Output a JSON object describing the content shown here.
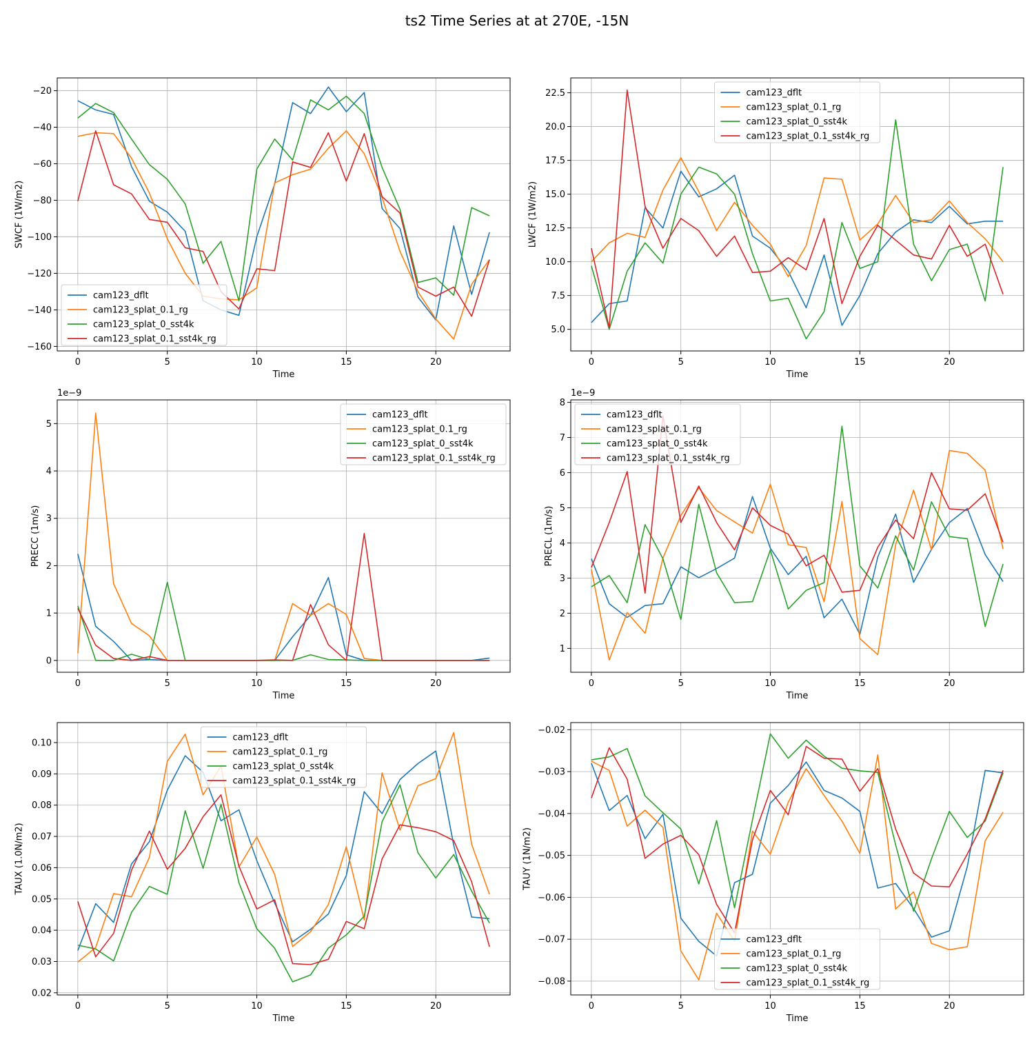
{
  "figure_title": "ts2 Time Series at at 270E, -15N",
  "colors": {
    "cam123_dflt": "#1f77b4",
    "cam123_splat_0.1_rg": "#ff7f0e",
    "cam123_splat_0_sst4k": "#2ca02c",
    "cam123_splat_0.1_sst4k_rg": "#d62728"
  },
  "chart_data": [
    {
      "type": "line",
      "ylabel": "SWCF (1W/m2)",
      "xlabel": "Time",
      "xlim": [
        -1.15,
        24.15
      ],
      "ylim": [
        -162.5,
        -13
      ],
      "xticks": [
        0,
        5,
        10,
        15,
        20
      ],
      "xtick_labels": [
        "0",
        "5",
        "10",
        "15",
        "20"
      ],
      "yticks": [
        -160,
        -140,
        -120,
        -100,
        -80,
        -60,
        -40,
        -20
      ],
      "ytick_labels": [
        "−160",
        "−140",
        "−120",
        "−100",
        "−80",
        "−60",
        "−40",
        "−20"
      ],
      "offset_text": "",
      "legend_loc": "lower-left",
      "grid": true,
      "x": [
        0,
        1,
        2,
        3,
        4,
        5,
        6,
        7,
        8,
        9,
        10,
        11,
        12,
        13,
        14,
        15,
        16,
        17,
        18,
        19,
        20,
        21,
        22,
        23
      ],
      "series": [
        {
          "name": "cam123_dflt",
          "values": [
            -25.5,
            -30.5,
            -33,
            -61.5,
            -80.5,
            -86.5,
            -97,
            -135,
            -140,
            -143,
            -100,
            -71,
            -26.5,
            -32.5,
            -18,
            -31.5,
            -21,
            -84.5,
            -95.5,
            -133,
            -145.5,
            -94,
            -131.5,
            -97.5
          ]
        },
        {
          "name": "cam123_splat_0.1_rg",
          "values": [
            -45,
            -43,
            -43.5,
            -57,
            -76,
            -101,
            -120,
            -132.5,
            -134,
            -134.5,
            -128,
            -70.5,
            -66,
            -63,
            -51.5,
            -42,
            -54.5,
            -78.5,
            -108,
            -130,
            -145,
            -156,
            -126,
            -112.5
          ]
        },
        {
          "name": "cam123_splat_0_sst4k",
          "values": [
            -35,
            -27,
            -32,
            -46.5,
            -60.5,
            -68.5,
            -82,
            -114.5,
            -102.5,
            -135,
            -63,
            -46.5,
            -58,
            -25,
            -30.5,
            -23,
            -32.5,
            -62,
            -85,
            -125,
            -122.5,
            -132,
            -84,
            -88.5
          ]
        },
        {
          "name": "cam123_splat_0.1_sst4k_rg",
          "values": [
            -80.5,
            -42,
            -71.5,
            -76.5,
            -90.5,
            -92,
            -106,
            -108,
            -130,
            -139.5,
            -117.5,
            -118.5,
            -59,
            -62,
            -43,
            -69.5,
            -43.5,
            -78,
            -87,
            -127.5,
            -132.5,
            -127.5,
            -143.5,
            -112.5
          ]
        }
      ]
    },
    {
      "type": "line",
      "ylabel": "LWCF (1W/m2)",
      "xlabel": "Time",
      "xlim": [
        -1.15,
        24.15
      ],
      "ylim": [
        3.4,
        23.6
      ],
      "xticks": [
        0,
        5,
        10,
        15,
        20
      ],
      "xtick_labels": [
        "0",
        "5",
        "10",
        "15",
        "20"
      ],
      "yticks": [
        5,
        7.5,
        10,
        12.5,
        15,
        17.5,
        20,
        22.5
      ],
      "ytick_labels": [
        "5.0",
        "7.5",
        "10.0",
        "12.5",
        "15.0",
        "17.5",
        "20.0",
        "22.5"
      ],
      "offset_text": "",
      "legend_loc": "top-center",
      "grid": true,
      "x": [
        0,
        1,
        2,
        3,
        4,
        5,
        6,
        7,
        8,
        9,
        10,
        11,
        12,
        13,
        14,
        15,
        16,
        17,
        18,
        19,
        20,
        21,
        22,
        23
      ],
      "series": [
        {
          "name": "cam123_dflt",
          "values": [
            5.5,
            6.9,
            7.1,
            14,
            12.5,
            16.7,
            14.8,
            15.4,
            16.4,
            11.9,
            11,
            9.3,
            6.6,
            10.5,
            5.3,
            7.5,
            10.6,
            12.2,
            13.1,
            12.9,
            14.1,
            12.8,
            13,
            13
          ]
        },
        {
          "name": "cam123_splat_0.1_rg",
          "values": [
            10,
            11.4,
            12.1,
            11.8,
            15.3,
            17.7,
            15.2,
            12.3,
            14.4,
            12.7,
            11.3,
            8.9,
            11.2,
            16.2,
            16.1,
            11.6,
            12.8,
            14.9,
            12.9,
            13.1,
            14.5,
            12.9,
            11.7,
            10
          ]
        },
        {
          "name": "cam123_splat_0_sst4k",
          "values": [
            9.7,
            5,
            9.3,
            11.4,
            9.9,
            15,
            17,
            16.5,
            15,
            10.6,
            7.1,
            7.3,
            4.3,
            6.3,
            12.9,
            9.5,
            10,
            20.5,
            11.3,
            8.6,
            10.9,
            11.3,
            7.1,
            17
          ]
        },
        {
          "name": "cam123_splat_0.1_sst4k_rg",
          "values": [
            11,
            5.1,
            22.7,
            14.1,
            11,
            13.2,
            12.3,
            10.4,
            11.9,
            9.2,
            9.3,
            10.3,
            9.4,
            13.2,
            6.9,
            10.4,
            12.7,
            11.6,
            10.5,
            10.2,
            12.7,
            10.4,
            11.3,
            7.6
          ]
        }
      ]
    },
    {
      "type": "line",
      "ylabel": "PRECC (1m/s)",
      "xlabel": "Time",
      "xlim": [
        -1.15,
        24.15
      ],
      "ylim": [
        -0.25,
        5.5
      ],
      "xticks": [
        0,
        5,
        10,
        15,
        20
      ],
      "xtick_labels": [
        "0",
        "5",
        "10",
        "15",
        "20"
      ],
      "yticks": [
        0,
        1,
        2,
        3,
        4,
        5
      ],
      "ytick_labels": [
        "0",
        "1",
        "2",
        "3",
        "4",
        "5"
      ],
      "offset_text": "1e−9",
      "legend_loc": "top-right",
      "grid": true,
      "x": [
        0,
        1,
        2,
        3,
        4,
        5,
        6,
        7,
        8,
        9,
        10,
        11,
        12,
        13,
        14,
        15,
        16,
        17,
        18,
        19,
        20,
        21,
        22,
        23
      ],
      "series": [
        {
          "name": "cam123_dflt",
          "values": [
            2.25,
            0.72,
            0.4,
            0,
            0.02,
            0,
            0,
            0,
            0,
            0,
            0,
            0,
            0.5,
            0.95,
            1.75,
            0.12,
            0,
            0,
            0,
            0,
            0,
            0,
            0,
            0.05
          ]
        },
        {
          "name": "cam123_splat_0.1_rg",
          "values": [
            0.15,
            5.22,
            1.62,
            0.78,
            0.52,
            0,
            0,
            0,
            0,
            0,
            0,
            0,
            1.2,
            0.95,
            1.2,
            0.97,
            0.04,
            0,
            0,
            0,
            0,
            0,
            0,
            0
          ]
        },
        {
          "name": "cam123_splat_0_sst4k",
          "values": [
            1.15,
            0,
            0,
            0.13,
            0.02,
            1.65,
            0,
            0,
            0,
            0,
            0,
            0,
            0,
            0.12,
            0.02,
            0.01,
            0,
            0,
            0,
            0,
            0,
            0,
            0,
            0
          ]
        },
        {
          "name": "cam123_splat_0.1_sst4k_rg",
          "values": [
            1.1,
            0.32,
            0.04,
            0,
            0.08,
            0,
            0,
            0,
            0,
            0,
            0,
            0.01,
            0,
            1.18,
            0.33,
            0,
            2.68,
            0,
            0,
            0,
            0,
            0,
            0,
            0
          ]
        }
      ]
    },
    {
      "type": "line",
      "ylabel": "PRECL (1m/s)",
      "xlabel": "Time",
      "xlim": [
        -1.15,
        24.15
      ],
      "ylim": [
        0.32,
        8.07
      ],
      "xticks": [
        0,
        5,
        10,
        15,
        20
      ],
      "xtick_labels": [
        "0",
        "5",
        "10",
        "15",
        "20"
      ],
      "yticks": [
        1,
        2,
        3,
        4,
        5,
        6,
        7,
        8
      ],
      "ytick_labels": [
        "1",
        "2",
        "3",
        "4",
        "5",
        "6",
        "7",
        "8"
      ],
      "offset_text": "1e−9",
      "legend_loc": "top-left",
      "grid": true,
      "x": [
        0,
        1,
        2,
        3,
        4,
        5,
        6,
        7,
        8,
        9,
        10,
        11,
        12,
        13,
        14,
        15,
        16,
        17,
        18,
        19,
        20,
        21,
        22,
        23
      ],
      "series": [
        {
          "name": "cam123_dflt",
          "values": [
            3.55,
            2.27,
            1.88,
            2.22,
            2.27,
            3.32,
            3.01,
            3.27,
            3.57,
            5.32,
            3.85,
            3.1,
            3.62,
            1.87,
            2.4,
            1.4,
            3.6,
            4.82,
            2.88,
            3.82,
            4.58,
            4.98,
            3.67,
            2.9
          ]
        },
        {
          "name": "cam123_splat_0.1_rg",
          "values": [
            3.25,
            0.67,
            2.02,
            1.43,
            3.57,
            4.78,
            5.57,
            4.92,
            4.6,
            4.28,
            5.67,
            3.95,
            3.87,
            2.33,
            5.18,
            1.28,
            0.82,
            3.95,
            5.5,
            3.8,
            6.63,
            6.55,
            6.07,
            3.83
          ]
        },
        {
          "name": "cam123_splat_0_sst4k",
          "values": [
            2.75,
            3.07,
            2.3,
            4.52,
            3.55,
            1.82,
            5.1,
            3.15,
            2.3,
            2.33,
            3.8,
            2.12,
            2.65,
            2.87,
            7.32,
            3.35,
            2.72,
            4.2,
            3.23,
            5.17,
            4.18,
            4.12,
            1.62,
            3.4
          ]
        },
        {
          "name": "cam123_splat_0.1_sst4k_rg",
          "values": [
            3.3,
            4.58,
            6.03,
            2.57,
            7.62,
            4.58,
            5.62,
            4.58,
            3.8,
            5,
            4.5,
            4.25,
            3.35,
            3.65,
            2.6,
            2.65,
            3.88,
            4.65,
            4.12,
            6,
            4.97,
            4.93,
            5.4,
            4.02
          ]
        }
      ]
    },
    {
      "type": "line",
      "ylabel": "TAUX (1.0N/m2)",
      "xlabel": "Time",
      "xlim": [
        -1.15,
        24.15
      ],
      "ylim": [
        0.0193,
        0.1064
      ],
      "xticks": [
        0,
        5,
        10,
        15,
        20
      ],
      "xtick_labels": [
        "0",
        "5",
        "10",
        "15",
        "20"
      ],
      "yticks": [
        0.02,
        0.03,
        0.04,
        0.05,
        0.06,
        0.07,
        0.08,
        0.09,
        0.1
      ],
      "ytick_labels": [
        "0.02",
        "0.03",
        "0.04",
        "0.05",
        "0.06",
        "0.07",
        "0.08",
        "0.09",
        "0.10"
      ],
      "offset_text": "",
      "legend_loc": "top-center",
      "grid": true,
      "x": [
        0,
        1,
        2,
        3,
        4,
        5,
        6,
        7,
        8,
        9,
        10,
        11,
        12,
        13,
        14,
        15,
        16,
        17,
        18,
        19,
        20,
        21,
        22,
        23
      ],
      "series": [
        {
          "name": "cam123_dflt",
          "values": [
            0.0335,
            0.0485,
            0.0425,
            0.0612,
            0.0683,
            0.0848,
            0.0958,
            0.0905,
            0.075,
            0.0785,
            0.0623,
            0.0487,
            0.0363,
            0.0403,
            0.0452,
            0.0575,
            0.0843,
            0.0773,
            0.0882,
            0.0933,
            0.0973,
            0.0672,
            0.0442,
            0.0437
          ]
        },
        {
          "name": "cam123_splat_0.1_rg",
          "values": [
            0.0298,
            0.0345,
            0.0517,
            0.0507,
            0.0633,
            0.094,
            0.1027,
            0.0833,
            0.0925,
            0.0602,
            0.0698,
            0.0578,
            0.0348,
            0.0395,
            0.0482,
            0.0667,
            0.0433,
            0.0903,
            0.072,
            0.0862,
            0.0885,
            0.1032,
            0.0675,
            0.0515
          ]
        },
        {
          "name": "cam123_splat_0_sst4k",
          "values": [
            0.0352,
            0.034,
            0.0302,
            0.0457,
            0.054,
            0.0515,
            0.0782,
            0.0598,
            0.0803,
            0.0552,
            0.0405,
            0.0342,
            0.0235,
            0.0257,
            0.0343,
            0.0385,
            0.0445,
            0.0747,
            0.0865,
            0.0648,
            0.0567,
            0.0642,
            0.0525,
            0.0423
          ]
        },
        {
          "name": "cam123_splat_0.1_sst4k_rg",
          "values": [
            0.0492,
            0.0315,
            0.039,
            0.0592,
            0.0717,
            0.0595,
            0.0662,
            0.0763,
            0.0833,
            0.0605,
            0.0468,
            0.0497,
            0.0293,
            0.029,
            0.0307,
            0.0428,
            0.0405,
            0.0628,
            0.0737,
            0.0728,
            0.0715,
            0.0687,
            0.0555,
            0.0347
          ]
        }
      ]
    },
    {
      "type": "line",
      "ylabel": "TAUY (1N/m2)",
      "xlabel": "Time",
      "xlim": [
        -1.15,
        24.15
      ],
      "ylim": [
        -0.0833,
        -0.0183
      ],
      "xticks": [
        0,
        5,
        10,
        15,
        20
      ],
      "xtick_labels": [
        "0",
        "5",
        "10",
        "15",
        "20"
      ],
      "yticks": [
        -0.08,
        -0.07,
        -0.06,
        -0.05,
        -0.04,
        -0.03,
        -0.02
      ],
      "ytick_labels": [
        "−0.08",
        "−0.07",
        "−0.06",
        "−0.05",
        "−0.04",
        "−0.03",
        "−0.02"
      ],
      "offset_text": "",
      "legend_loc": "lower-center",
      "grid": true,
      "x": [
        0,
        1,
        2,
        3,
        4,
        5,
        6,
        7,
        8,
        9,
        10,
        11,
        12,
        13,
        14,
        15,
        16,
        17,
        18,
        19,
        20,
        21,
        22,
        23
      ],
      "series": [
        {
          "name": "cam123_dflt",
          "values": [
            -0.028,
            -0.0393,
            -0.0357,
            -0.046,
            -0.0402,
            -0.065,
            -0.0705,
            -0.074,
            -0.0565,
            -0.0545,
            -0.0375,
            -0.0333,
            -0.0277,
            -0.0345,
            -0.0363,
            -0.0395,
            -0.0578,
            -0.0567,
            -0.0627,
            -0.0695,
            -0.068,
            -0.0527,
            -0.0297,
            -0.0303
          ]
        },
        {
          "name": "cam123_splat_0.1_rg",
          "values": [
            -0.0275,
            -0.0297,
            -0.043,
            -0.0392,
            -0.0433,
            -0.0728,
            -0.0797,
            -0.0638,
            -0.0705,
            -0.0442,
            -0.0497,
            -0.0373,
            -0.0293,
            -0.0357,
            -0.0418,
            -0.0495,
            -0.026,
            -0.0628,
            -0.0587,
            -0.071,
            -0.0725,
            -0.0718,
            -0.0465,
            -0.0397
          ]
        },
        {
          "name": "cam123_splat_0_sst4k",
          "values": [
            -0.0272,
            -0.0265,
            -0.0245,
            -0.0358,
            -0.0398,
            -0.0437,
            -0.0568,
            -0.0417,
            -0.0625,
            -0.0415,
            -0.021,
            -0.0268,
            -0.0225,
            -0.0263,
            -0.0292,
            -0.0298,
            -0.0302,
            -0.0475,
            -0.0633,
            -0.0508,
            -0.0395,
            -0.0457,
            -0.0418,
            -0.0303
          ]
        },
        {
          "name": "cam123_splat_0.1_sst4k_rg",
          "values": [
            -0.0363,
            -0.0243,
            -0.0318,
            -0.0507,
            -0.0473,
            -0.0452,
            -0.0498,
            -0.0617,
            -0.0685,
            -0.0463,
            -0.0345,
            -0.0403,
            -0.024,
            -0.0268,
            -0.027,
            -0.0347,
            -0.0293,
            -0.0437,
            -0.0542,
            -0.0573,
            -0.0575,
            -0.0497,
            -0.0413,
            -0.0297
          ]
        }
      ]
    }
  ]
}
